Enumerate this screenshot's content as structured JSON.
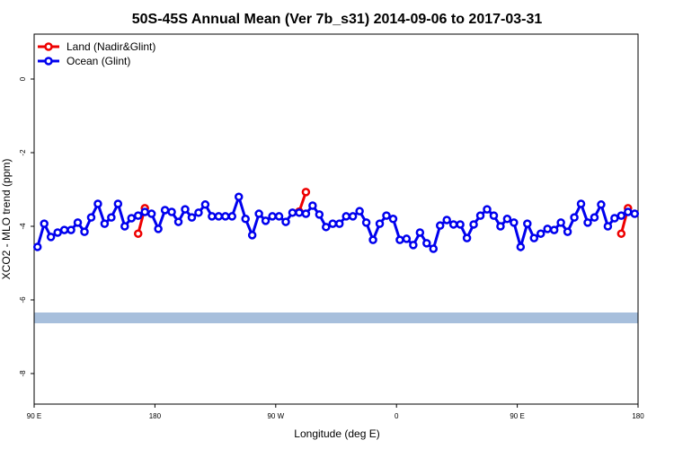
{
  "chart_data": {
    "type": "line",
    "title": "50S-45S Annual Mean (Ver 7b_s31)   2014-09-06 to 2017-03-31",
    "x_label": "Longitude (deg E)",
    "y_label": "XCO2 - MLO trend (ppm)",
    "x": [
      92.5,
      97.5,
      102.5,
      107.5,
      112.5,
      117.5,
      122.5,
      127.5,
      132.5,
      137.5,
      142.5,
      147.5,
      152.5,
      157.5,
      162.5,
      167.5,
      172.5,
      177.5,
      182.5,
      187.5,
      192.5,
      197.5,
      202.5,
      207.5,
      212.5,
      217.5,
      222.5,
      227.5,
      232.5,
      237.5,
      242.5,
      247.5,
      252.5,
      257.5,
      262.5,
      267.5,
      272.5,
      277.5,
      282.5,
      287.5,
      292.5,
      297.5,
      302.5,
      307.5,
      312.5,
      317.5,
      322.5,
      327.5,
      332.5,
      337.5,
      342.5,
      347.5,
      352.5,
      357.5,
      362.5,
      367.5,
      372.5,
      377.5,
      382.5,
      387.5,
      392.5,
      397.5,
      402.5,
      407.5,
      412.5,
      417.5,
      422.5,
      427.5,
      432.5,
      437.5,
      442.5,
      447.5,
      452.5,
      457.5,
      462.5,
      467.5,
      472.5,
      477.5,
      482.5,
      487.5,
      492.5,
      497.5,
      502.5,
      507.5,
      512.5,
      517.5,
      522.5,
      527.5,
      532.5,
      537.5
    ],
    "series": [
      {
        "name": "Land (Nadir&Glint)",
        "color": "#ee0000",
        "values": [
          null,
          null,
          null,
          null,
          null,
          null,
          null,
          null,
          null,
          null,
          null,
          null,
          null,
          null,
          null,
          -4.2,
          -3.51,
          null,
          null,
          null,
          null,
          null,
          null,
          null,
          null,
          null,
          null,
          null,
          null,
          null,
          null,
          null,
          null,
          null,
          null,
          null,
          null,
          null,
          null,
          -3.6,
          -3.07,
          null,
          null,
          null,
          null,
          null,
          null,
          null,
          null,
          null,
          null,
          null,
          null,
          null,
          null,
          null,
          null,
          null,
          null,
          null,
          null,
          null,
          null,
          null,
          null,
          null,
          null,
          null,
          null,
          null,
          null,
          null,
          null,
          null,
          null,
          null,
          null,
          null,
          null,
          null,
          null,
          null,
          null,
          null,
          null,
          null,
          null,
          -4.2,
          -3.51,
          null
        ]
      },
      {
        "name": "Ocean (Glint)",
        "color": "#0000ee",
        "values": [
          -4.56,
          -3.93,
          -4.29,
          -4.17,
          -4.1,
          -4.1,
          -3.9,
          -4.15,
          -3.76,
          -3.39,
          -3.93,
          -3.76,
          -3.39,
          -4.0,
          -3.78,
          -3.71,
          -3.61,
          -3.66,
          -4.07,
          -3.56,
          -3.61,
          -3.88,
          -3.54,
          -3.76,
          -3.63,
          -3.41,
          -3.73,
          -3.73,
          -3.73,
          -3.73,
          -3.2,
          -3.8,
          -4.24,
          -3.66,
          -3.85,
          -3.73,
          -3.73,
          -3.88,
          -3.63,
          -3.63,
          -3.66,
          -3.44,
          -3.68,
          -4.02,
          -3.93,
          -3.93,
          -3.73,
          -3.73,
          -3.59,
          -3.9,
          -4.37,
          -3.93,
          -3.71,
          -3.8,
          -4.37,
          -4.34,
          -4.51,
          -4.17,
          -4.46,
          -4.61,
          -3.98,
          -3.83,
          -3.95,
          -3.95,
          -4.32,
          -3.95,
          -3.71,
          -3.54,
          -3.71,
          -4.0,
          -3.8,
          -3.9,
          -4.56,
          -3.93,
          -4.32,
          -4.2,
          -4.07,
          -4.1,
          -3.9,
          -4.15,
          -3.76,
          -3.39,
          -3.9,
          -3.76,
          -3.41,
          -4.0,
          -3.78,
          -3.71,
          -3.61,
          -3.66
        ]
      }
    ],
    "xlim": [
      90,
      540
    ],
    "xticks": [
      {
        "value": 90,
        "label": "90 E"
      },
      180,
      {
        "value": 270,
        "label": "90 W"
      },
      {
        "value": 360,
        "label": "0"
      },
      {
        "value": 450,
        "label": "90 E"
      },
      {
        "value": 540,
        "label": "180"
      }
    ],
    "ylim": [
      -8.83,
      1.22
    ],
    "yticks": [
      -8,
      -6,
      -4,
      -2,
      0
    ],
    "legend": "top-left"
  }
}
